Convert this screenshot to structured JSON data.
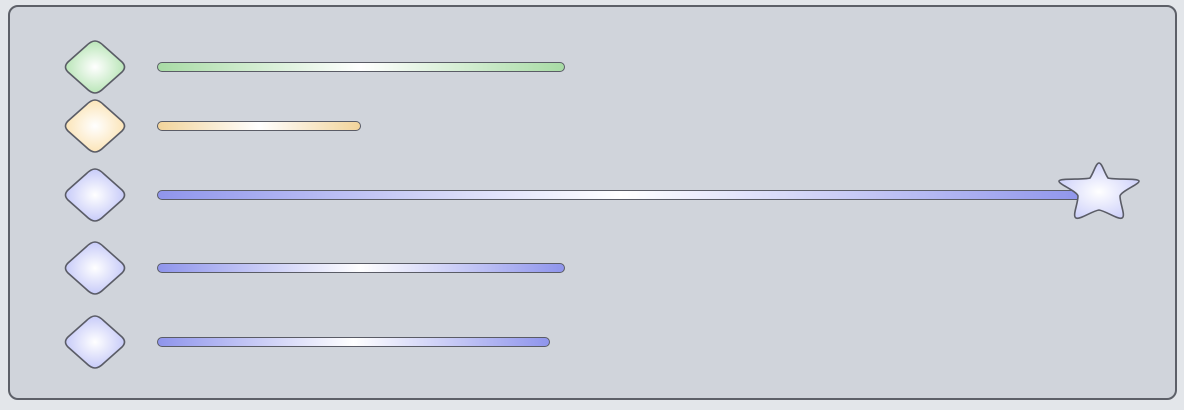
{
  "palette": {
    "green": "#c9ecc8",
    "orange": "#fdeccd",
    "blue": "#d6d9fb",
    "outline": "#5a5c66",
    "panel": "#d0d4db"
  },
  "rows": [
    {
      "icon": "diamond-icon",
      "color": "green",
      "bar_fill": "#a8dba5",
      "level": 0.4
    },
    {
      "icon": "diamond-icon",
      "color": "orange",
      "bar_fill": "#f2d49b",
      "level": 0.2
    },
    {
      "icon": "diamond-icon",
      "color": "blue",
      "bar_fill": "#8f95ec",
      "level": 0.91,
      "marker": "star-icon"
    },
    {
      "icon": "diamond-icon",
      "color": "blue",
      "bar_fill": "#8f95ec",
      "level": 0.4
    },
    {
      "icon": "diamond-icon",
      "color": "blue",
      "bar_fill": "#8f95ec",
      "level": 0.385
    }
  ]
}
